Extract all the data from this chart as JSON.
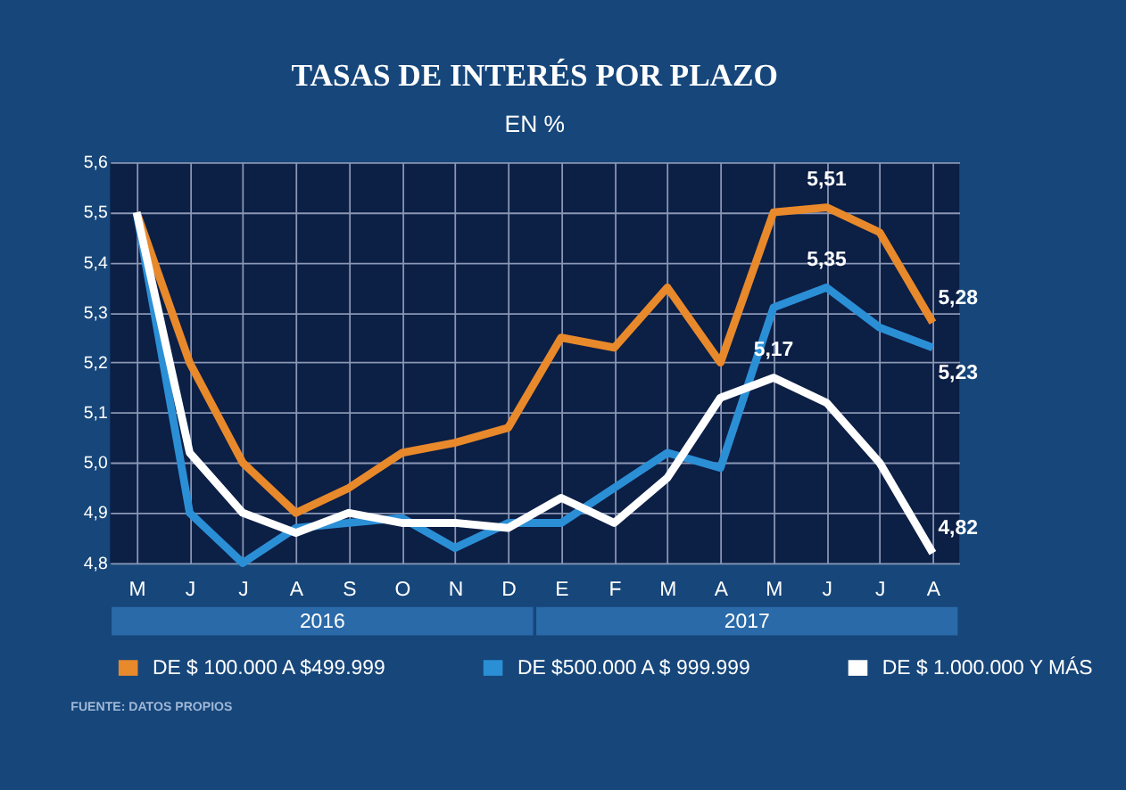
{
  "chart_data": {
    "type": "line",
    "title": "TASAS DE INTERÉS POR PLAZO",
    "subtitle": "EN %",
    "categories": [
      "M",
      "J",
      "J",
      "A",
      "S",
      "O",
      "N",
      "D",
      "E",
      "F",
      "M",
      "A",
      "M",
      "J",
      "J",
      "A"
    ],
    "series": [
      {
        "name": "DE $ 100.000 A $499.999",
        "color": "#e8892b",
        "values": [
          5.5,
          5.2,
          5.0,
          4.9,
          4.95,
          5.02,
          5.04,
          5.07,
          5.25,
          5.23,
          5.35,
          5.2,
          5.5,
          5.51,
          5.46,
          5.28
        ],
        "value_labels": [
          null,
          null,
          null,
          null,
          null,
          null,
          null,
          null,
          null,
          null,
          null,
          null,
          null,
          "5,51",
          null,
          "5,28"
        ]
      },
      {
        "name": "DE $500.000 A $ 999.999",
        "color": "#2b8fd6",
        "values": [
          5.5,
          4.9,
          4.8,
          4.87,
          4.88,
          4.89,
          4.83,
          4.88,
          4.88,
          4.95,
          5.02,
          4.99,
          5.31,
          5.35,
          5.27,
          5.23
        ],
        "value_labels": [
          null,
          null,
          null,
          null,
          null,
          null,
          null,
          null,
          null,
          null,
          null,
          null,
          null,
          "5,35",
          null,
          "5,23"
        ]
      },
      {
        "name": "DE $ 1.000.000 Y MÁS",
        "color": "#ffffff",
        "values": [
          5.5,
          5.02,
          4.9,
          4.86,
          4.9,
          4.88,
          4.88,
          4.87,
          4.93,
          4.88,
          4.97,
          5.13,
          5.17,
          5.12,
          5.0,
          4.82
        ],
        "value_labels": [
          null,
          null,
          null,
          null,
          null,
          null,
          null,
          null,
          null,
          null,
          null,
          null,
          "5,17",
          null,
          null,
          "4,82"
        ]
      }
    ],
    "ylim": [
      4.8,
      5.6
    ],
    "yticks": [
      {
        "value": 4.8,
        "label": "4,8"
      },
      {
        "value": 4.9,
        "label": "4,9"
      },
      {
        "value": 5.0,
        "label": "5,0"
      },
      {
        "value": 5.1,
        "label": "5,1"
      },
      {
        "value": 5.2,
        "label": "5,2"
      },
      {
        "value": 5.3,
        "label": "5,3"
      },
      {
        "value": 5.4,
        "label": "5,4"
      },
      {
        "value": 5.5,
        "label": "5,5"
      },
      {
        "value": 5.6,
        "label": "5,6"
      }
    ],
    "grid": true,
    "legend": "bottom",
    "line_style": "solid",
    "marker": "none",
    "annotations": [
      "2016",
      "2017",
      "FUENTE: DATOS PROPIOS"
    ]
  }
}
